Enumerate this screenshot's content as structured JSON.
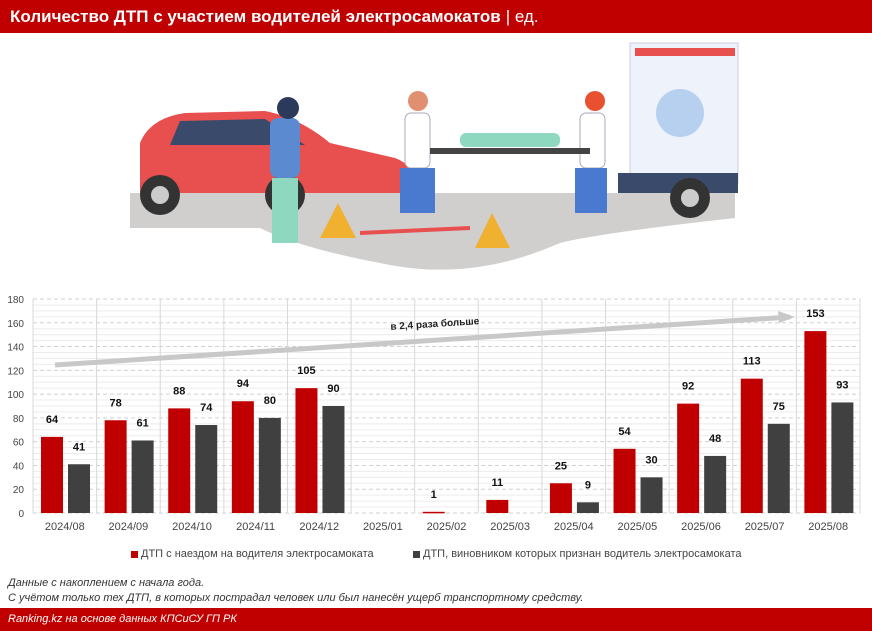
{
  "header": {
    "title": "Количество ДТП с участием водителей электросамокатов",
    "unit": "| ед."
  },
  "chart_data": {
    "type": "bar",
    "categories": [
      "2024/08",
      "2024/09",
      "2024/10",
      "2024/11",
      "2024/12",
      "2025/01",
      "2025/02",
      "2025/03",
      "2025/04",
      "2025/05",
      "2025/06",
      "2025/07",
      "2025/08"
    ],
    "series": [
      {
        "name": "ДТП с наездом на водителя электросамоката",
        "color": "#c00000",
        "values": [
          64,
          78,
          88,
          94,
          105,
          null,
          1,
          11,
          25,
          54,
          92,
          113,
          153
        ]
      },
      {
        "name": "ДТП, виновником которых признан водитель электросамоката",
        "color": "#404040",
        "values": [
          41,
          61,
          74,
          80,
          90,
          null,
          null,
          null,
          9,
          30,
          48,
          75,
          93
        ]
      }
    ],
    "ylim": [
      0,
      180
    ],
    "yticks": [
      0,
      20,
      40,
      60,
      80,
      100,
      120,
      140,
      160,
      180
    ],
    "grid": true,
    "legend": "bottom",
    "annotation": "в 2,4 раза больше"
  },
  "notes": [
    "Данные с накоплением с начала года.",
    "С учётом только тех ДТП, в которых пострадал человек или был нанесён ущерб транспортному средству."
  ],
  "footer": "Ranking.kz на основе данных КПСиСУ ГП РК"
}
